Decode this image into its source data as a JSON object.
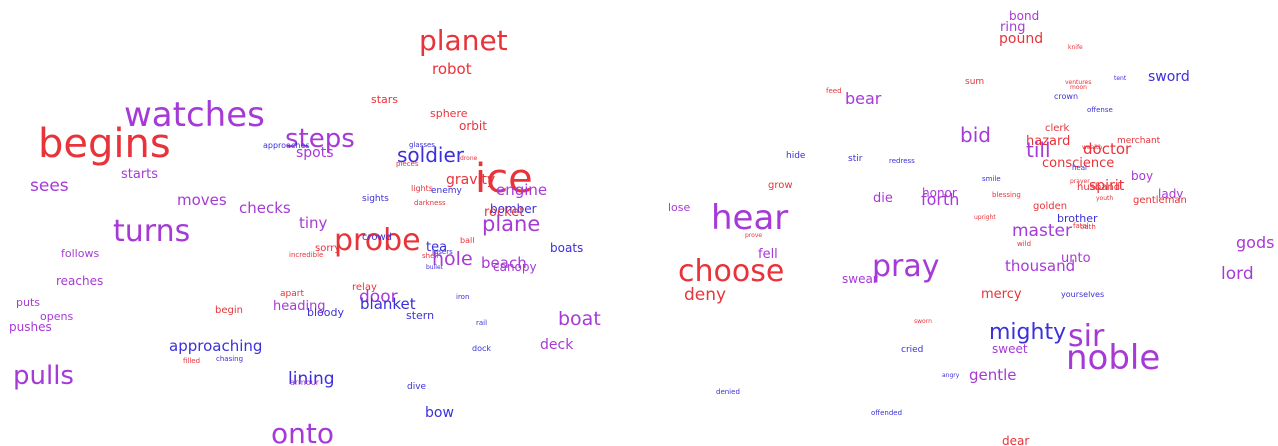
{
  "colors": {
    "red": "#e8333a",
    "purple": "#a63ad6",
    "blue": "#3b30d9"
  },
  "words": [
    {
      "text": "planet",
      "c": "red"
    },
    {
      "text": "robot",
      "c": "red"
    },
    {
      "text": "watches",
      "c": "purple"
    },
    {
      "text": "begins",
      "c": "red"
    },
    {
      "text": "steps",
      "c": "purple"
    },
    {
      "text": "spots",
      "c": "purple"
    },
    {
      "text": "approaches",
      "c": "blue"
    },
    {
      "text": "stars",
      "c": "red"
    },
    {
      "text": "sphere",
      "c": "red"
    },
    {
      "text": "orbit",
      "c": "red"
    },
    {
      "text": "glasses",
      "c": "blue"
    },
    {
      "text": "soldier",
      "c": "blue"
    },
    {
      "text": "drone",
      "c": "red"
    },
    {
      "text": "pieces",
      "c": "red"
    },
    {
      "text": "ice",
      "c": "red"
    },
    {
      "text": "starts",
      "c": "purple"
    },
    {
      "text": "sees",
      "c": "purple"
    },
    {
      "text": "gravity",
      "c": "red"
    },
    {
      "text": "lights",
      "c": "red"
    },
    {
      "text": "enemy",
      "c": "blue"
    },
    {
      "text": "engine",
      "c": "purple"
    },
    {
      "text": "moves",
      "c": "purple"
    },
    {
      "text": "sights",
      "c": "blue"
    },
    {
      "text": "darkness",
      "c": "red"
    },
    {
      "text": "checks",
      "c": "purple"
    },
    {
      "text": "bomber",
      "c": "blue"
    },
    {
      "text": "rocket",
      "c": "red"
    },
    {
      "text": "turns",
      "c": "purple"
    },
    {
      "text": "tiny",
      "c": "purple"
    },
    {
      "text": "plane",
      "c": "purple"
    },
    {
      "text": "probe",
      "c": "red"
    },
    {
      "text": "crowd",
      "c": "blue"
    },
    {
      "text": "sorry",
      "c": "red"
    },
    {
      "text": "tea",
      "c": "blue"
    },
    {
      "text": "ball",
      "c": "red"
    },
    {
      "text": "boats",
      "c": "blue"
    },
    {
      "text": "follows",
      "c": "purple"
    },
    {
      "text": "incredible",
      "c": "red"
    },
    {
      "text": "hole",
      "c": "purple"
    },
    {
      "text": "shell",
      "c": "red"
    },
    {
      "text": "lasers",
      "c": "blue"
    },
    {
      "text": "beach",
      "c": "purple"
    },
    {
      "text": "canopy",
      "c": "purple"
    },
    {
      "text": "bullet",
      "c": "blue"
    },
    {
      "text": "reaches",
      "c": "purple"
    },
    {
      "text": "relay",
      "c": "red"
    },
    {
      "text": "apart",
      "c": "red"
    },
    {
      "text": "door",
      "c": "purple"
    },
    {
      "text": "iron",
      "c": "blue"
    },
    {
      "text": "puts",
      "c": "purple"
    },
    {
      "text": "heading",
      "c": "purple"
    },
    {
      "text": "blanket",
      "c": "blue"
    },
    {
      "text": "begin",
      "c": "red"
    },
    {
      "text": "bloody",
      "c": "blue"
    },
    {
      "text": "opens",
      "c": "purple"
    },
    {
      "text": "stern",
      "c": "blue"
    },
    {
      "text": "boat",
      "c": "purple"
    },
    {
      "text": "pushes",
      "c": "purple"
    },
    {
      "text": "rail",
      "c": "blue"
    },
    {
      "text": "approaching",
      "c": "blue"
    },
    {
      "text": "deck",
      "c": "purple"
    },
    {
      "text": "dock",
      "c": "blue"
    },
    {
      "text": "chasing",
      "c": "blue"
    },
    {
      "text": "filled",
      "c": "red"
    },
    {
      "text": "pulls",
      "c": "purple"
    },
    {
      "text": "lining",
      "c": "blue"
    },
    {
      "text": "armour",
      "c": "purple"
    },
    {
      "text": "dive",
      "c": "blue"
    },
    {
      "text": "bow",
      "c": "blue"
    },
    {
      "text": "onto",
      "c": "purple"
    },
    {
      "text": "bond",
      "c": "purple"
    },
    {
      "text": "ring",
      "c": "purple"
    },
    {
      "text": "pound",
      "c": "red"
    },
    {
      "text": "knife",
      "c": "red"
    },
    {
      "text": "sword",
      "c": "blue"
    },
    {
      "text": "tent",
      "c": "blue"
    },
    {
      "text": "sum",
      "c": "red"
    },
    {
      "text": "ventures",
      "c": "red"
    },
    {
      "text": "moon",
      "c": "red"
    },
    {
      "text": "feed",
      "c": "red"
    },
    {
      "text": "bear",
      "c": "purple"
    },
    {
      "text": "crown",
      "c": "blue"
    },
    {
      "text": "offense",
      "c": "blue"
    },
    {
      "text": "clerk",
      "c": "red"
    },
    {
      "text": "bid",
      "c": "purple"
    },
    {
      "text": "hazard",
      "c": "red"
    },
    {
      "text": "till",
      "c": "purple"
    },
    {
      "text": "merchant",
      "c": "red"
    },
    {
      "text": "wealth",
      "c": "red"
    },
    {
      "text": "doctor",
      "c": "red"
    },
    {
      "text": "hide",
      "c": "blue"
    },
    {
      "text": "stir",
      "c": "blue"
    },
    {
      "text": "redress",
      "c": "blue"
    },
    {
      "text": "conscience",
      "c": "red"
    },
    {
      "text": "heal",
      "c": "blue"
    },
    {
      "text": "grow",
      "c": "red"
    },
    {
      "text": "boy",
      "c": "purple"
    },
    {
      "text": "smile",
      "c": "blue"
    },
    {
      "text": "prayer",
      "c": "red"
    },
    {
      "text": "spirit",
      "c": "red"
    },
    {
      "text": "husband",
      "c": "red"
    },
    {
      "text": "blessing",
      "c": "red"
    },
    {
      "text": "youth",
      "c": "red"
    },
    {
      "text": "lady",
      "c": "purple"
    },
    {
      "text": "die",
      "c": "purple"
    },
    {
      "text": "honor",
      "c": "purple"
    },
    {
      "text": "forth",
      "c": "purple"
    },
    {
      "text": "gentleman",
      "c": "red"
    },
    {
      "text": "lose",
      "c": "purple"
    },
    {
      "text": "hear",
      "c": "purple"
    },
    {
      "text": "golden",
      "c": "red"
    },
    {
      "text": "brother",
      "c": "blue"
    },
    {
      "text": "fatal",
      "c": "red"
    },
    {
      "text": "oath",
      "c": "red"
    },
    {
      "text": "upright",
      "c": "red"
    },
    {
      "text": "master",
      "c": "purple"
    },
    {
      "text": "prove",
      "c": "red"
    },
    {
      "text": "gods",
      "c": "purple"
    },
    {
      "text": "wild",
      "c": "red"
    },
    {
      "text": "fell",
      "c": "purple"
    },
    {
      "text": "choose",
      "c": "red"
    },
    {
      "text": "pray",
      "c": "purple"
    },
    {
      "text": "unto",
      "c": "purple"
    },
    {
      "text": "thousand",
      "c": "purple"
    },
    {
      "text": "swear",
      "c": "purple"
    },
    {
      "text": "lord",
      "c": "purple"
    },
    {
      "text": "deny",
      "c": "red"
    },
    {
      "text": "mercy",
      "c": "red"
    },
    {
      "text": "yourselves",
      "c": "blue"
    },
    {
      "text": "sworn",
      "c": "red"
    },
    {
      "text": "mighty",
      "c": "blue"
    },
    {
      "text": "sir",
      "c": "purple"
    },
    {
      "text": "cried",
      "c": "blue"
    },
    {
      "text": "sweet",
      "c": "purple"
    },
    {
      "text": "noble",
      "c": "purple"
    },
    {
      "text": "gentle",
      "c": "purple"
    },
    {
      "text": "angry",
      "c": "blue"
    },
    {
      "text": "denied",
      "c": "blue"
    },
    {
      "text": "offended",
      "c": "blue"
    },
    {
      "text": "dear",
      "c": "red"
    }
  ]
}
